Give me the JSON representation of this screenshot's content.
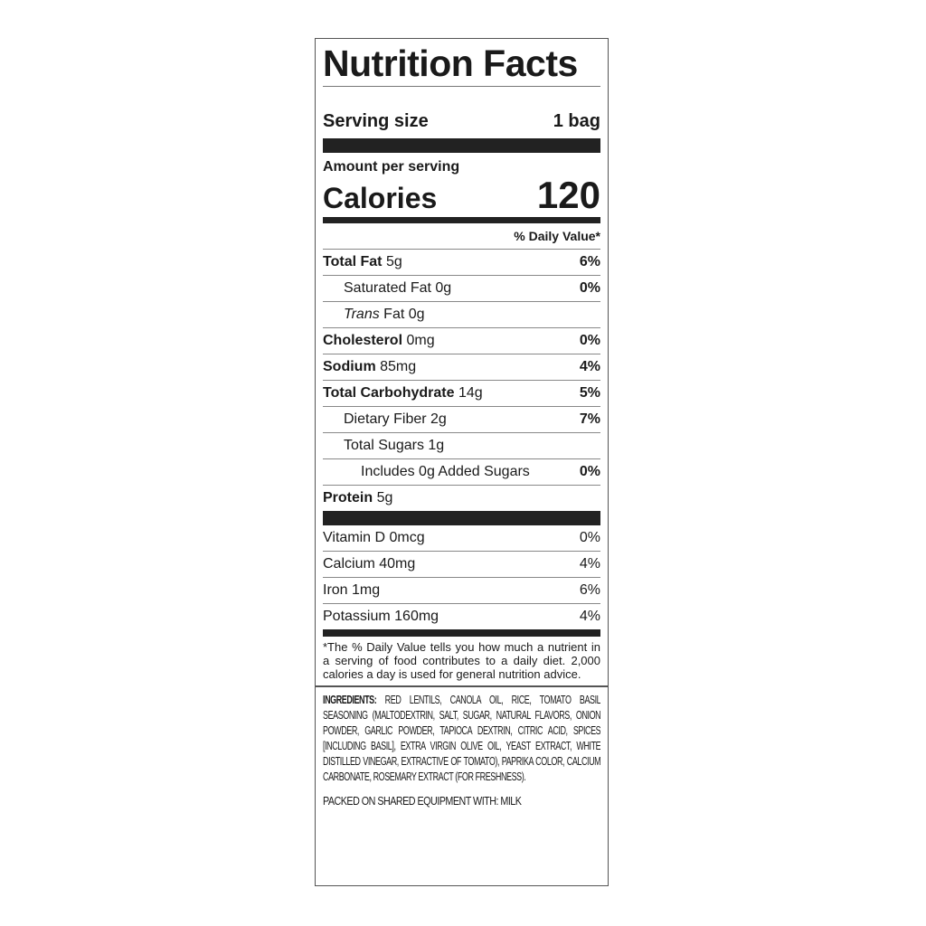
{
  "title": "Nutrition Facts",
  "serving": {
    "label": "Serving size",
    "value": "1 bag"
  },
  "calories": {
    "amount_label": "Amount per serving",
    "label": "Calories",
    "value": "120"
  },
  "dv_header": "% Daily Value*",
  "nutrients": [
    {
      "name": "Total Fat",
      "amount": "5g",
      "dv": "6%",
      "bold": true,
      "indent": 0
    },
    {
      "name": "Saturated Fat",
      "amount": "0g",
      "dv": "0%",
      "bold": false,
      "indent": 1
    },
    {
      "name": "Trans",
      "name_rest": "Fat",
      "amount": "0g",
      "dv": "",
      "bold": false,
      "indent": 1
    },
    {
      "name": "Cholesterol",
      "amount": "0mg",
      "dv": "0%",
      "bold": true,
      "indent": 0
    },
    {
      "name": "Sodium",
      "amount": "85mg",
      "dv": "4%",
      "bold": true,
      "indent": 0
    },
    {
      "name": "Total Carbohydrate",
      "amount": "14g",
      "dv": "5%",
      "bold": true,
      "indent": 0
    },
    {
      "name": "Dietary Fiber",
      "amount": "2g",
      "dv": "7%",
      "bold": false,
      "indent": 1
    },
    {
      "name": "Total Sugars",
      "amount": "1g",
      "dv": "",
      "bold": false,
      "indent": 1
    },
    {
      "name": "Includes 0g Added Sugars",
      "amount": "",
      "dv": "0%",
      "bold": false,
      "indent": 2
    },
    {
      "name": "Protein",
      "amount": "5g",
      "dv": "",
      "bold": true,
      "indent": 0
    }
  ],
  "vitamins": [
    {
      "name": "Vitamin D 0mcg",
      "dv": "0%"
    },
    {
      "name": "Calcium 40mg",
      "dv": "4%"
    },
    {
      "name": "Iron 1mg",
      "dv": "6%"
    },
    {
      "name": "Potassium 160mg",
      "dv": "4%"
    }
  ],
  "footnote": "*The % Daily Value tells you how much a nutrient in a serving of food contributes to a daily diet. 2,000 calories a day is used for general nutrition advice.",
  "ingredients": {
    "label": "INGREDIENTS:",
    "text": "RED LENTILS, CANOLA OIL, RICE, TOMATO BASIL SEASONING (MALTODEXTRIN, SALT, SUGAR, NATURAL FLAVORS, ONION POWDER, GARLIC POWDER, TAPIOCA DEXTRIN, CITRIC ACID, SPICES [INCLUDING BASIL], EXTRA VIRGIN OLIVE OIL, YEAST EXTRACT, WHITE DISTILLED VINEGAR, EXTRACTIVE OF TOMATO), PAPRIKA COLOR, CALCIUM CARBONATE, ROSEMARY EXTRACT (FOR FRESHNESS)."
  },
  "allergen": "PACKED ON SHARED EQUIPMENT WITH: MILK"
}
